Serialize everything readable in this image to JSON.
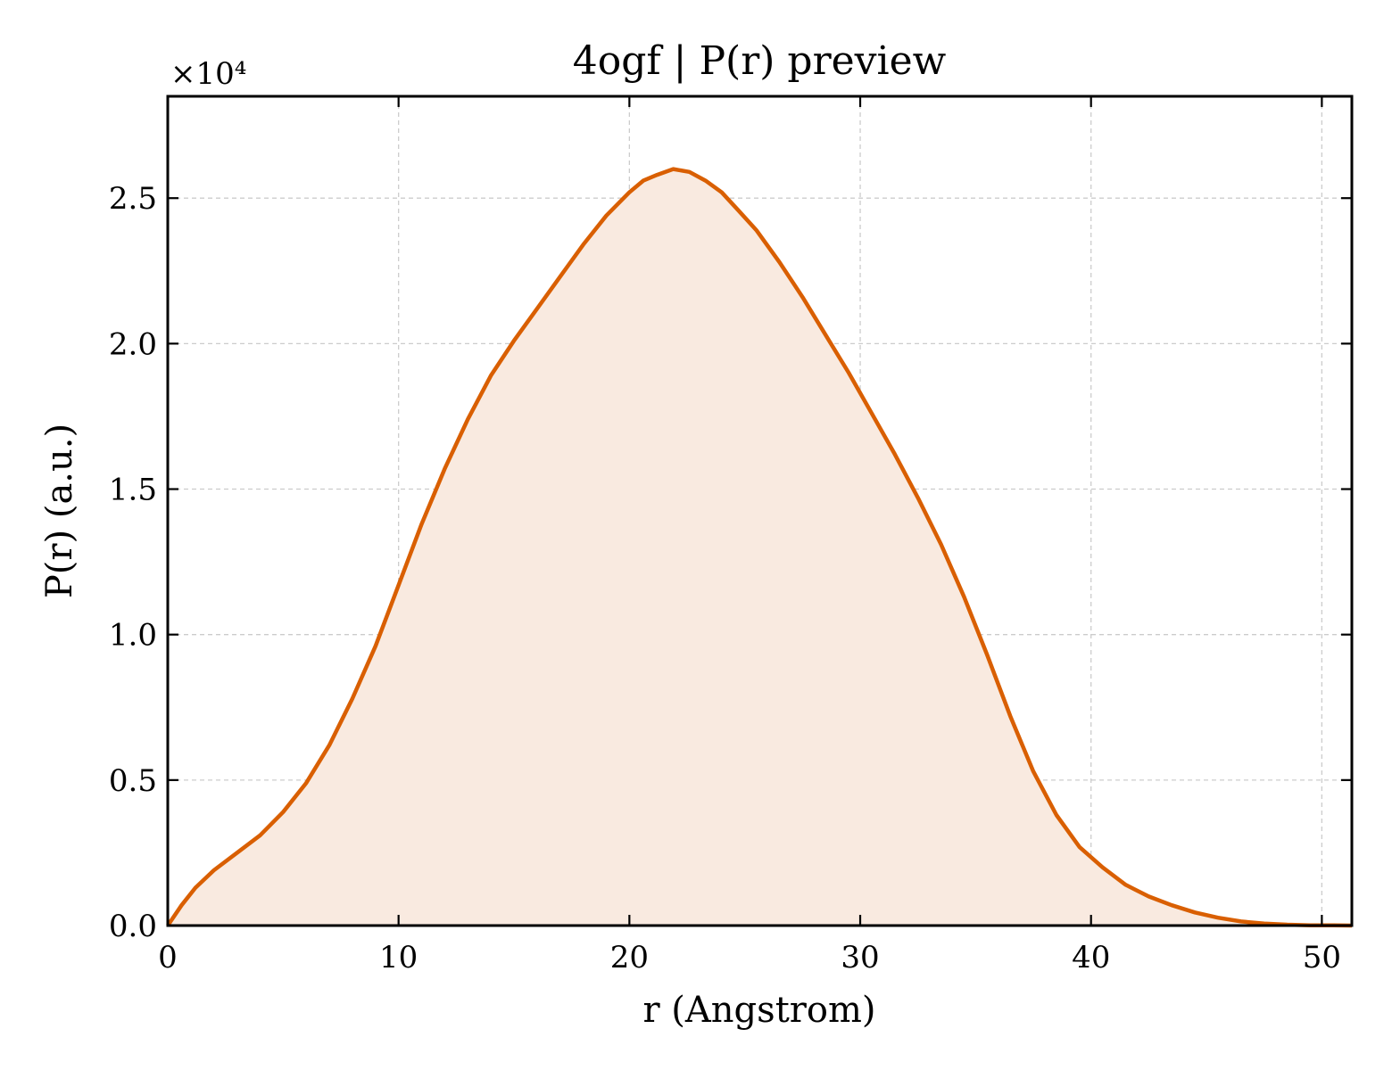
{
  "chart_data": {
    "type": "area",
    "title": "4ogf | P(r) preview",
    "xlabel": "r (Angstrom)",
    "ylabel": "P(r) (a.u.)",
    "y_scale_label": "×10⁴",
    "xlim": [
      0,
      51.3
    ],
    "ylim": [
      0,
      2.85
    ],
    "xticks": [
      0,
      10,
      20,
      30,
      40,
      50
    ],
    "xtick_labels": [
      "0",
      "10",
      "20",
      "30",
      "40",
      "50"
    ],
    "yticks": [
      0,
      0.5,
      1.0,
      1.5,
      2.0,
      2.5
    ],
    "ytick_labels": [
      "0.0",
      "0.5",
      "1.0",
      "1.5",
      "2.0",
      "2.5"
    ],
    "grid": true,
    "colors": {
      "line": "#d95f02",
      "fill": "#f9eae0"
    },
    "series": [
      {
        "x": [
          0,
          0.6,
          1.2,
          2,
          3,
          4,
          5,
          6,
          7,
          8,
          9,
          10,
          11,
          12,
          13,
          14,
          15,
          16,
          17,
          18,
          19,
          20,
          20.6,
          21.2,
          21.9,
          22.6,
          23.3,
          24,
          24.7,
          25.5,
          26.5,
          27.5,
          28.5,
          29.5,
          30.5,
          31.5,
          32.5,
          33.5,
          34.5,
          35.5,
          36.5,
          37.5,
          38.5,
          39.5,
          40.5,
          41.5,
          42.5,
          43.5,
          44.5,
          45.5,
          46.5,
          47.5,
          48.5,
          49.5,
          50.5,
          51.3
        ],
        "y": [
          0,
          0.07,
          0.13,
          0.19,
          0.25,
          0.31,
          0.39,
          0.49,
          0.62,
          0.78,
          0.96,
          1.17,
          1.38,
          1.57,
          1.74,
          1.89,
          2.01,
          2.12,
          2.23,
          2.34,
          2.44,
          2.52,
          2.56,
          2.58,
          2.6,
          2.59,
          2.56,
          2.52,
          2.46,
          2.39,
          2.28,
          2.16,
          2.03,
          1.9,
          1.76,
          1.62,
          1.47,
          1.31,
          1.13,
          0.93,
          0.72,
          0.53,
          0.38,
          0.27,
          0.2,
          0.14,
          0.1,
          0.07,
          0.045,
          0.027,
          0.014,
          0.007,
          0.003,
          0.001,
          0.0005,
          0
        ]
      }
    ]
  }
}
